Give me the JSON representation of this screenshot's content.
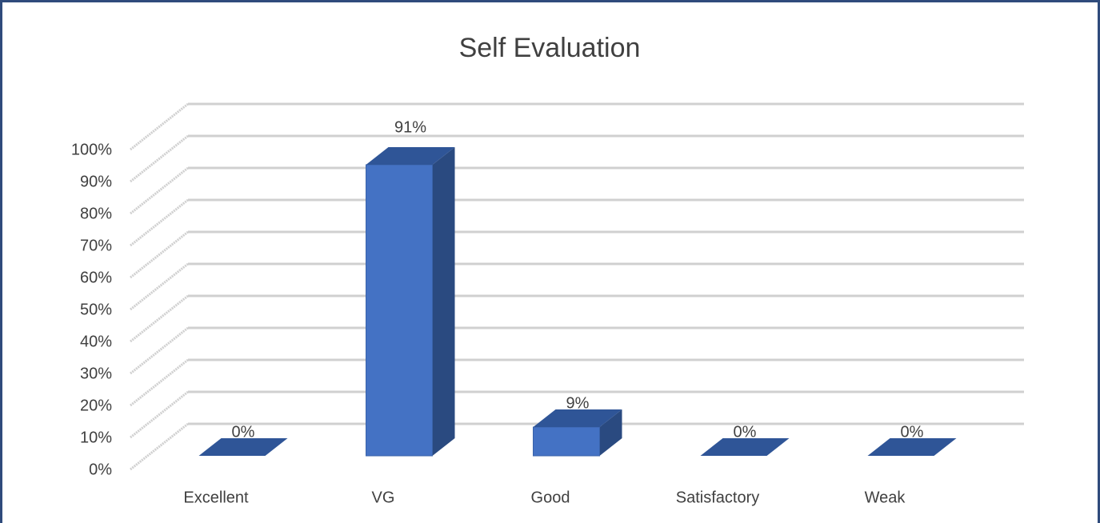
{
  "chart_data": {
    "type": "bar3d",
    "title": "Self Evaluation",
    "categories": [
      "Excellent",
      "VG",
      "Good",
      "Satisfactory",
      "Weak"
    ],
    "values": [
      0,
      91,
      9,
      0,
      0
    ],
    "value_labels": [
      "0%",
      "91%",
      "9%",
      "0%",
      "0%"
    ],
    "color": "#4472c4",
    "ylim": [
      0,
      100
    ],
    "yticks": [
      {
        "value": 0,
        "label": "0%"
      },
      {
        "value": 10,
        "label": "10%"
      },
      {
        "value": 20,
        "label": "20%"
      },
      {
        "value": 30,
        "label": "30%"
      },
      {
        "value": 40,
        "label": "40%"
      },
      {
        "value": 50,
        "label": "50%"
      },
      {
        "value": 60,
        "label": "60%"
      },
      {
        "value": 70,
        "label": "70%"
      },
      {
        "value": 80,
        "label": "80%"
      },
      {
        "value": 90,
        "label": "90%"
      },
      {
        "value": 100,
        "label": "100%"
      }
    ],
    "grid": true
  }
}
